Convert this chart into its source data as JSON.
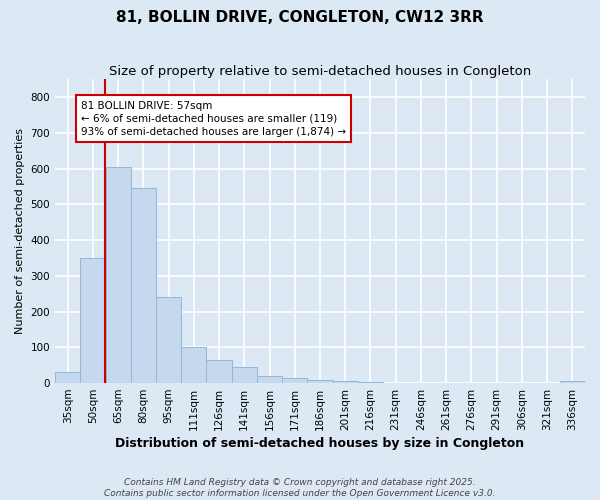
{
  "title": "81, BOLLIN DRIVE, CONGLETON, CW12 3RR",
  "subtitle": "Size of property relative to semi-detached houses in Congleton",
  "xlabel": "Distribution of semi-detached houses by size in Congleton",
  "ylabel": "Number of semi-detached properties",
  "categories": [
    "35sqm",
    "50sqm",
    "65sqm",
    "80sqm",
    "95sqm",
    "111sqm",
    "126sqm",
    "141sqm",
    "156sqm",
    "171sqm",
    "186sqm",
    "201sqm",
    "216sqm",
    "231sqm",
    "246sqm",
    "261sqm",
    "276sqm",
    "291sqm",
    "306sqm",
    "321sqm",
    "336sqm"
  ],
  "values": [
    30,
    350,
    605,
    545,
    240,
    100,
    65,
    45,
    20,
    13,
    8,
    5,
    3,
    1,
    1,
    1,
    0,
    0,
    0,
    0,
    5
  ],
  "bar_color": "#c5d8ee",
  "bar_edge_color": "#90b8d8",
  "background_color": "#dde8f5",
  "plot_bg_color": "#dde8f5",
  "grid_color": "#ffffff",
  "ylim": [
    0,
    850
  ],
  "yticks": [
    0,
    100,
    200,
    300,
    400,
    500,
    600,
    700,
    800
  ],
  "vline_x_index": 1.47,
  "vline_color": "#cc0000",
  "annotation_text": "81 BOLLIN DRIVE: 57sqm\n← 6% of semi-detached houses are smaller (119)\n93% of semi-detached houses are larger (1,874) →",
  "annotation_box_color": "#ffffff",
  "annotation_box_edge": "#cc0000",
  "footer_line1": "Contains HM Land Registry data © Crown copyright and database right 2025.",
  "footer_line2": "Contains public sector information licensed under the Open Government Licence v3.0.",
  "title_fontsize": 11,
  "subtitle_fontsize": 9.5,
  "xlabel_fontsize": 9,
  "ylabel_fontsize": 8,
  "tick_fontsize": 7.5,
  "annotation_fontsize": 7.5,
  "footer_fontsize": 6.5
}
